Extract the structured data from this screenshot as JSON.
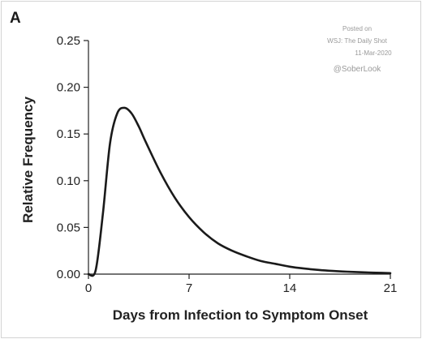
{
  "panel_label": "A",
  "watermark": {
    "line1": "Posted on",
    "line2": "WSJ: The Daily Shot",
    "line3": "11-Mar-2020",
    "line4": "@SoberLook"
  },
  "chart_data": {
    "type": "line",
    "title": "",
    "xlabel": "Days from Infection to Symptom Onset",
    "ylabel": "Relative Frequency",
    "xlim": [
      0,
      21
    ],
    "ylim": [
      0,
      0.25
    ],
    "x_ticks": [
      0,
      7,
      14,
      21
    ],
    "x_tick_labels": [
      "0",
      "7",
      "14",
      "21"
    ],
    "y_ticks": [
      0,
      0.05,
      0.1,
      0.15,
      0.2,
      0.25
    ],
    "y_tick_labels": [
      "0.00",
      "0.05",
      "0.10",
      "0.15",
      "0.20",
      "0.25"
    ],
    "grid": false,
    "series": [
      {
        "color": "#1a1a1a",
        "x": [
          0,
          0.5,
          1,
          1.5,
          2,
          2.5,
          3,
          3.5,
          4,
          5,
          6,
          7,
          8,
          9,
          10,
          11,
          12,
          13,
          14,
          15,
          16,
          17,
          18,
          19,
          20,
          21
        ],
        "y": [
          0,
          0.004,
          0.064,
          0.14,
          0.172,
          0.178,
          0.172,
          0.158,
          0.141,
          0.109,
          0.082,
          0.061,
          0.045,
          0.033,
          0.025,
          0.019,
          0.014,
          0.011,
          0.008,
          0.006,
          0.0045,
          0.0034,
          0.0026,
          0.002,
          0.0015,
          0.001
        ]
      }
    ]
  }
}
